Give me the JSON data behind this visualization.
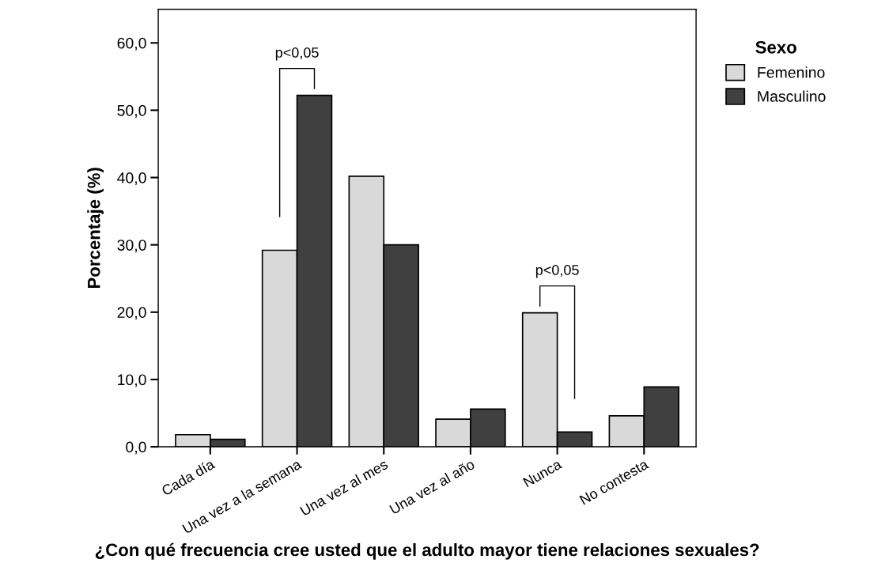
{
  "chart_data": {
    "type": "bar",
    "xlabel": "¿Con qué frecuencia cree usted que el adulto mayor tiene relaciones sexuales?",
    "ylabel": "Porcentaje (%)",
    "legend_title": "Sexo",
    "legend": "top right",
    "categories": [
      "Cada día",
      "Una vez a la semana",
      "Una vez al mes",
      "Una vez al año",
      "Nunca",
      "No contesta"
    ],
    "series": [
      {
        "name": "Femenino",
        "color": "#d9d9d9",
        "values": [
          1.8,
          29.2,
          40.2,
          4.1,
          19.9,
          4.6
        ]
      },
      {
        "name": "Masculino",
        "color": "#404040",
        "values": [
          1.1,
          52.2,
          30.0,
          5.6,
          2.2,
          8.9
        ]
      }
    ],
    "ylim": [
      0,
      65
    ],
    "yticks": [
      {
        "value": 0,
        "label": "0,0"
      },
      {
        "value": 10,
        "label": "10,0"
      },
      {
        "value": 20,
        "label": "20,0"
      },
      {
        "value": 30,
        "label": "30,0"
      },
      {
        "value": 40,
        "label": "40,0"
      },
      {
        "value": 50,
        "label": "50,0"
      },
      {
        "value": 60,
        "label": "60,0"
      }
    ],
    "annotations": [
      "p<0,05",
      "p<0,05"
    ],
    "grid": false
  }
}
